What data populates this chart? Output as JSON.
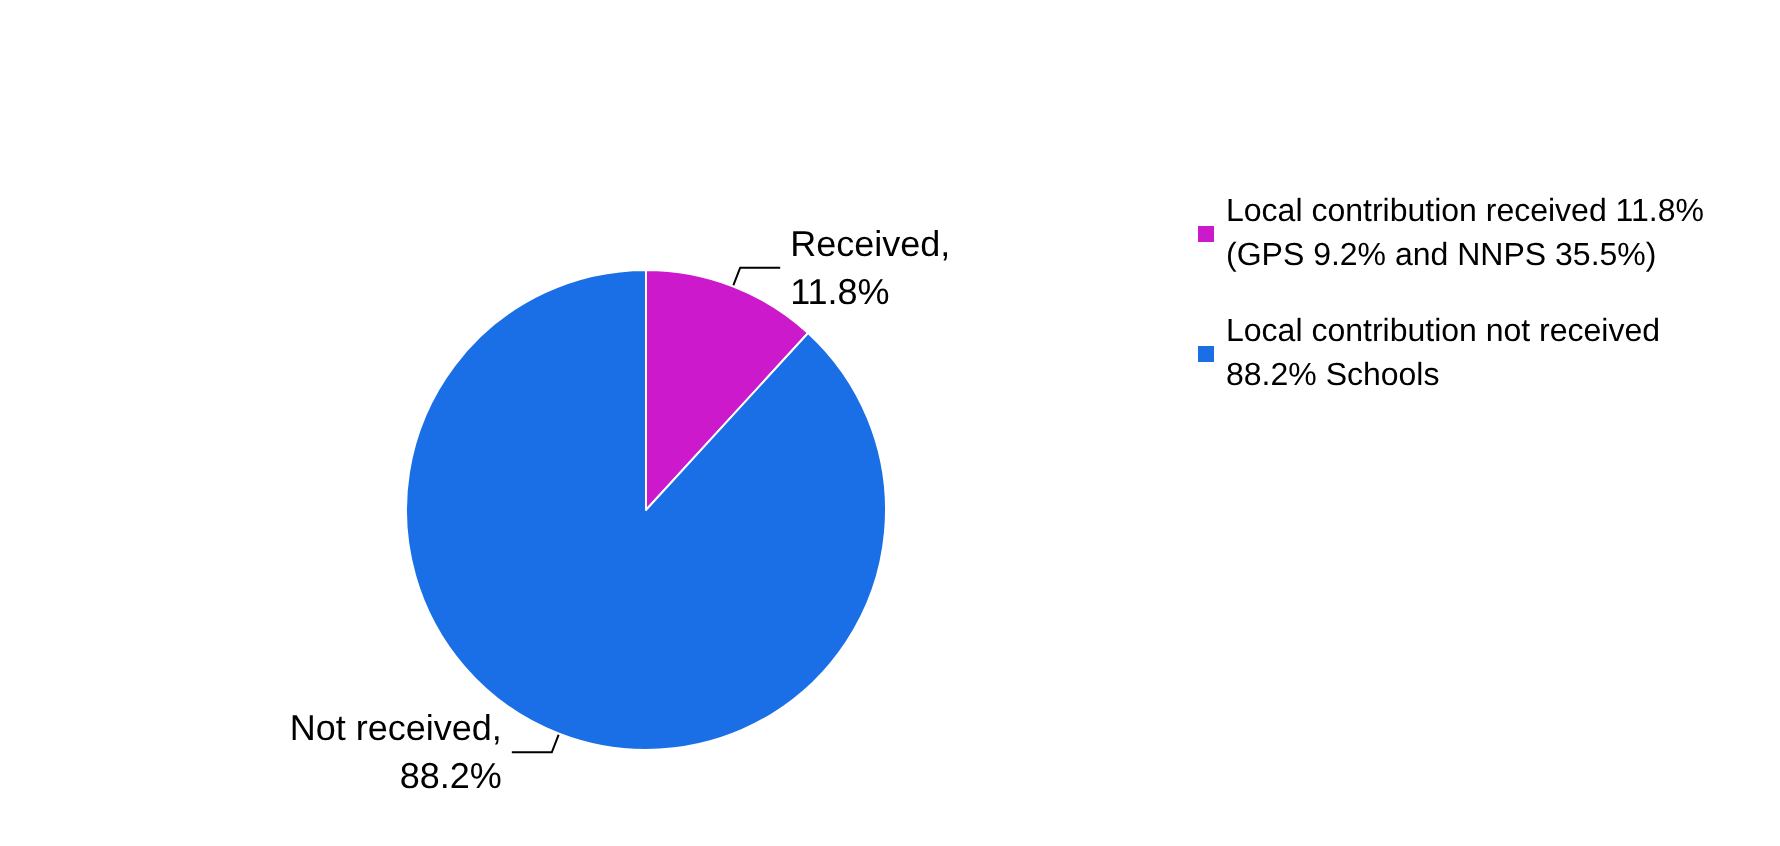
{
  "chart_data": {
    "type": "pie",
    "categories": [
      "Local contribution received 11.8% (GPS 9.2% and NNPS 35.5%)",
      "Local contribution not received 88.2% Schools"
    ],
    "values": [
      11.8,
      88.2
    ],
    "colors": [
      "#cc19cc",
      "#1a6fe6"
    ],
    "value_labels": [
      "Received, 11.8%",
      "Not received, 88.2%"
    ],
    "legend": "right"
  }
}
